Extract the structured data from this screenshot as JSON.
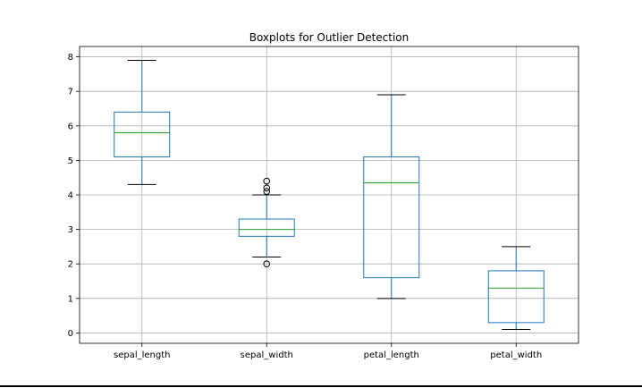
{
  "chart_data": {
    "type": "box",
    "title": "Boxplots for Outlier Detection",
    "xlabel": "",
    "ylabel": "",
    "ylim": [
      -0.3,
      8.3
    ],
    "yticks": [
      0,
      1,
      2,
      3,
      4,
      5,
      6,
      7,
      8
    ],
    "grid": true,
    "categories": [
      "sepal_length",
      "sepal_width",
      "petal_length",
      "petal_width"
    ],
    "boxes": [
      {
        "whisker_low": 4.3,
        "q1": 5.1,
        "median": 5.8,
        "q3": 6.4,
        "whisker_high": 7.9,
        "outliers": []
      },
      {
        "whisker_low": 2.2,
        "q1": 2.8,
        "median": 3.0,
        "q3": 3.3,
        "whisker_high": 4.0,
        "outliers": [
          4.4,
          4.2,
          4.1,
          2.0
        ]
      },
      {
        "whisker_low": 1.0,
        "q1": 1.6,
        "median": 4.35,
        "q3": 5.1,
        "whisker_high": 6.9,
        "outliers": []
      },
      {
        "whisker_low": 0.1,
        "q1": 0.3,
        "median": 1.3,
        "q3": 1.8,
        "whisker_high": 2.5,
        "outliers": []
      }
    ],
    "colors": {
      "box": "#1f77b4",
      "median": "#2ca02c",
      "grid": "#b0b0b0",
      "outlier": "#000000"
    }
  }
}
